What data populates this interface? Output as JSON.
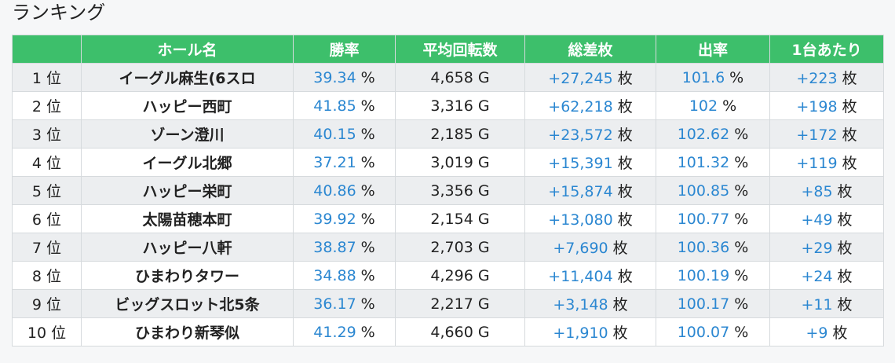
{
  "title": "ランキング",
  "table": {
    "columns": [
      "",
      "ホール名",
      "勝率",
      "平均回転数",
      "総差枚",
      "出率",
      "1台あたり"
    ],
    "rows": [
      {
        "rank": "1 位",
        "name": "イーグル麻生(6スロ",
        "win_rate": {
          "value": "39.34",
          "unit": "%"
        },
        "spins": "4,658 G",
        "total": {
          "value": "+27,245",
          "unit": "枚"
        },
        "payout": {
          "value": "101.6",
          "unit": "%"
        },
        "per_machine": {
          "value": "+223",
          "unit": "枚"
        }
      },
      {
        "rank": "2 位",
        "name": "ハッピー西町",
        "win_rate": {
          "value": "41.85",
          "unit": "%"
        },
        "spins": "3,316 G",
        "total": {
          "value": "+62,218",
          "unit": "枚"
        },
        "payout": {
          "value": "102",
          "unit": "%"
        },
        "per_machine": {
          "value": "+198",
          "unit": "枚"
        }
      },
      {
        "rank": "3 位",
        "name": "ゾーン澄川",
        "win_rate": {
          "value": "40.15",
          "unit": "%"
        },
        "spins": "2,185 G",
        "total": {
          "value": "+23,572",
          "unit": "枚"
        },
        "payout": {
          "value": "102.62",
          "unit": "%"
        },
        "per_machine": {
          "value": "+172",
          "unit": "枚"
        }
      },
      {
        "rank": "4 位",
        "name": "イーグル北郷",
        "win_rate": {
          "value": "37.21",
          "unit": "%"
        },
        "spins": "3,019 G",
        "total": {
          "value": "+15,391",
          "unit": "枚"
        },
        "payout": {
          "value": "101.32",
          "unit": "%"
        },
        "per_machine": {
          "value": "+119",
          "unit": "枚"
        }
      },
      {
        "rank": "5 位",
        "name": "ハッピー栄町",
        "win_rate": {
          "value": "40.86",
          "unit": "%"
        },
        "spins": "3,356 G",
        "total": {
          "value": "+15,874",
          "unit": "枚"
        },
        "payout": {
          "value": "100.85",
          "unit": "%"
        },
        "per_machine": {
          "value": "+85",
          "unit": "枚"
        }
      },
      {
        "rank": "6 位",
        "name": "太陽苗穂本町",
        "win_rate": {
          "value": "39.92",
          "unit": "%"
        },
        "spins": "2,154 G",
        "total": {
          "value": "+13,080",
          "unit": "枚"
        },
        "payout": {
          "value": "100.77",
          "unit": "%"
        },
        "per_machine": {
          "value": "+49",
          "unit": "枚"
        }
      },
      {
        "rank": "7 位",
        "name": "ハッピー八軒",
        "win_rate": {
          "value": "38.87",
          "unit": "%"
        },
        "spins": "2,703 G",
        "total": {
          "value": "+7,690",
          "unit": "枚"
        },
        "payout": {
          "value": "100.36",
          "unit": "%"
        },
        "per_machine": {
          "value": "+29",
          "unit": "枚"
        }
      },
      {
        "rank": "8 位",
        "name": "ひまわりタワー",
        "win_rate": {
          "value": "34.88",
          "unit": "%"
        },
        "spins": "4,296 G",
        "total": {
          "value": "+11,404",
          "unit": "枚"
        },
        "payout": {
          "value": "100.19",
          "unit": "%"
        },
        "per_machine": {
          "value": "+24",
          "unit": "枚"
        }
      },
      {
        "rank": "9 位",
        "name": "ビッグスロット北5条",
        "win_rate": {
          "value": "36.17",
          "unit": "%"
        },
        "spins": "2,217 G",
        "total": {
          "value": "+3,148",
          "unit": "枚"
        },
        "payout": {
          "value": "100.17",
          "unit": "%"
        },
        "per_machine": {
          "value": "+11",
          "unit": "枚"
        }
      },
      {
        "rank": "10 位",
        "name": "ひまわり新琴似",
        "win_rate": {
          "value": "41.29",
          "unit": "%"
        },
        "spins": "4,660 G",
        "total": {
          "value": "+1,910",
          "unit": "枚"
        },
        "payout": {
          "value": "100.07",
          "unit": "%"
        },
        "per_machine": {
          "value": "+9",
          "unit": "枚"
        }
      }
    ]
  }
}
